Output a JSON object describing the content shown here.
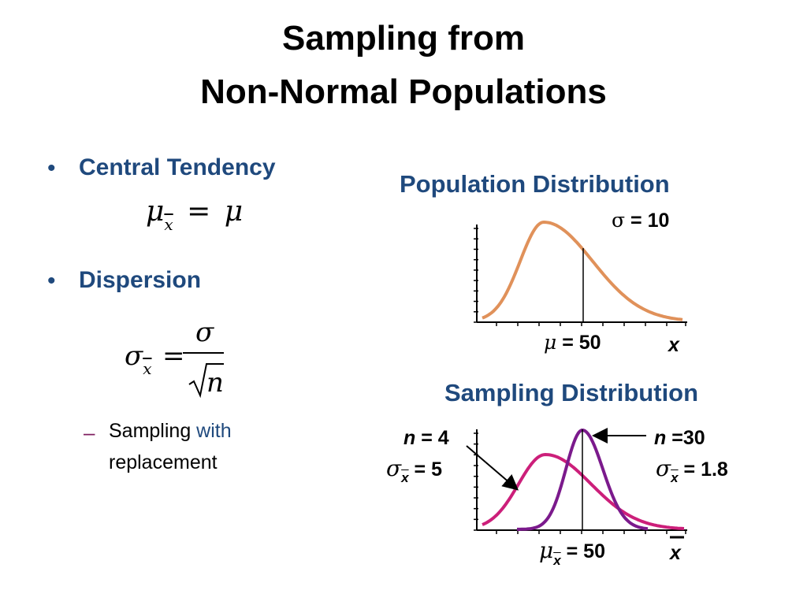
{
  "title": {
    "line1": "Sampling from",
    "line2": "Non-Normal Populations"
  },
  "bullets": {
    "central_tendency": "Central Tendency",
    "dispersion": "Dispersion"
  },
  "formulas": {
    "mean_lhs": "μ",
    "mean_sub": "x",
    "mean_eq": "=",
    "mean_rhs": "μ",
    "sd_lhs": "σ",
    "sd_sub": "x",
    "sd_eq": "=",
    "sd_num": "σ",
    "sd_den": "n"
  },
  "sub_bullet": {
    "text1": "Sampling ",
    "text2": "with",
    "text3": "replacement"
  },
  "population": {
    "title": "Population Distribution",
    "sigma_symbol": "σ",
    "sigma_text": " = 10",
    "mu_symbol": "μ",
    "mu_text": " = 50",
    "x_label": "x",
    "curve_color": "#e0915a"
  },
  "sampling": {
    "title": "Sampling Distribution",
    "n4_n": "n",
    "n4_text": " = 4",
    "n4_sigma": "σ",
    "n4_sub": "x",
    "n4_val": " = 5",
    "n30_n": "n",
    "n30_text": " =30",
    "n30_sigma": "σ",
    "n30_sub": "x",
    "n30_val": " = 1.8",
    "mu_symbol": "μ",
    "mu_sub": "x",
    "mu_text": " = 50",
    "x_label": "x",
    "n4_color": "#cc1f7a",
    "n30_color": "#7b1a8c"
  }
}
